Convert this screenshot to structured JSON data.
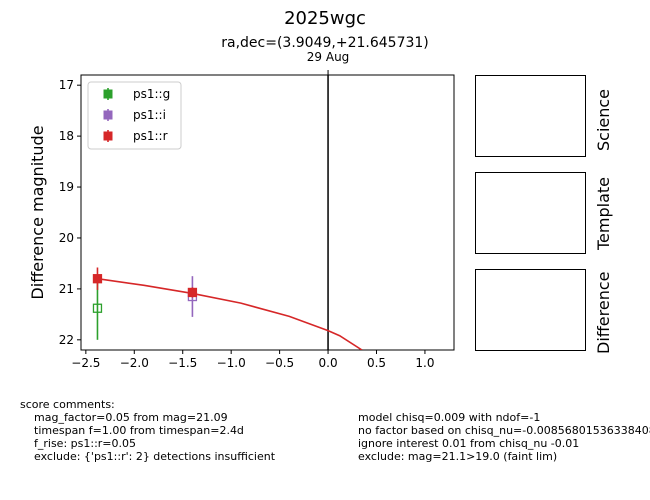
{
  "title": "2025wgc",
  "subtitle": "ra,dec=(3.9049,+21.645731)",
  "chart_data": {
    "type": "scatter",
    "xlabel": "Days before 29-Aug-25 19:22",
    "ylabel": "Difference magnitude",
    "xlim": [
      -2.55,
      1.3
    ],
    "ylim": [
      22.2,
      16.8
    ],
    "x_ticks": [
      "−2.5",
      "−2.0",
      "−1.5",
      "−1.0",
      "−0.5",
      "0.0",
      "0.5",
      "1.0"
    ],
    "y_ticks": [
      "17",
      "18",
      "19",
      "20",
      "21",
      "22"
    ],
    "vline": {
      "x": 0,
      "label": "29 Aug"
    },
    "legend_position": "top-left",
    "series": [
      {
        "name": "ps1::g",
        "color": "#2ca02c",
        "marker": "open-square",
        "points": [
          {
            "x": -2.38,
            "y": 21.38,
            "err": 0.62
          }
        ]
      },
      {
        "name": "ps1::i",
        "color": "#9467bd",
        "marker": "open-square",
        "points": [
          {
            "x": -1.4,
            "y": 21.15,
            "err": 0.4
          }
        ]
      },
      {
        "name": "ps1::r",
        "color": "#d62728",
        "marker": "filled-square",
        "points": [
          {
            "x": -2.38,
            "y": 20.8,
            "err": 0.22
          },
          {
            "x": -1.4,
            "y": 21.07,
            "err": 0.1
          }
        ]
      }
    ],
    "model_curve": {
      "color": "#d62728",
      "x": [
        -2.38,
        -1.9,
        -1.4,
        -0.9,
        -0.4,
        0.0,
        0.12,
        0.35
      ],
      "y": [
        20.8,
        20.93,
        21.09,
        21.28,
        21.54,
        21.82,
        21.92,
        22.2
      ]
    }
  },
  "panels": [
    "Science",
    "Template",
    "Difference"
  ],
  "comments": {
    "header": "score comments:",
    "left": [
      "mag_factor=0.05 from mag=21.09",
      "timespan f=1.00 from timespan=2.4d",
      "f_rise: ps1::r=0.05",
      "exclude: {'ps1::r': 2} detections insufficient"
    ],
    "right": [
      "model chisq=0.009 with ndof=-1",
      "no factor based on chisq_nu=-0.008568015363384084",
      "ignore interest 0.01 from chisq_nu -0.01",
      "exclude: mag=21.1>19.0 (faint lim)"
    ]
  }
}
